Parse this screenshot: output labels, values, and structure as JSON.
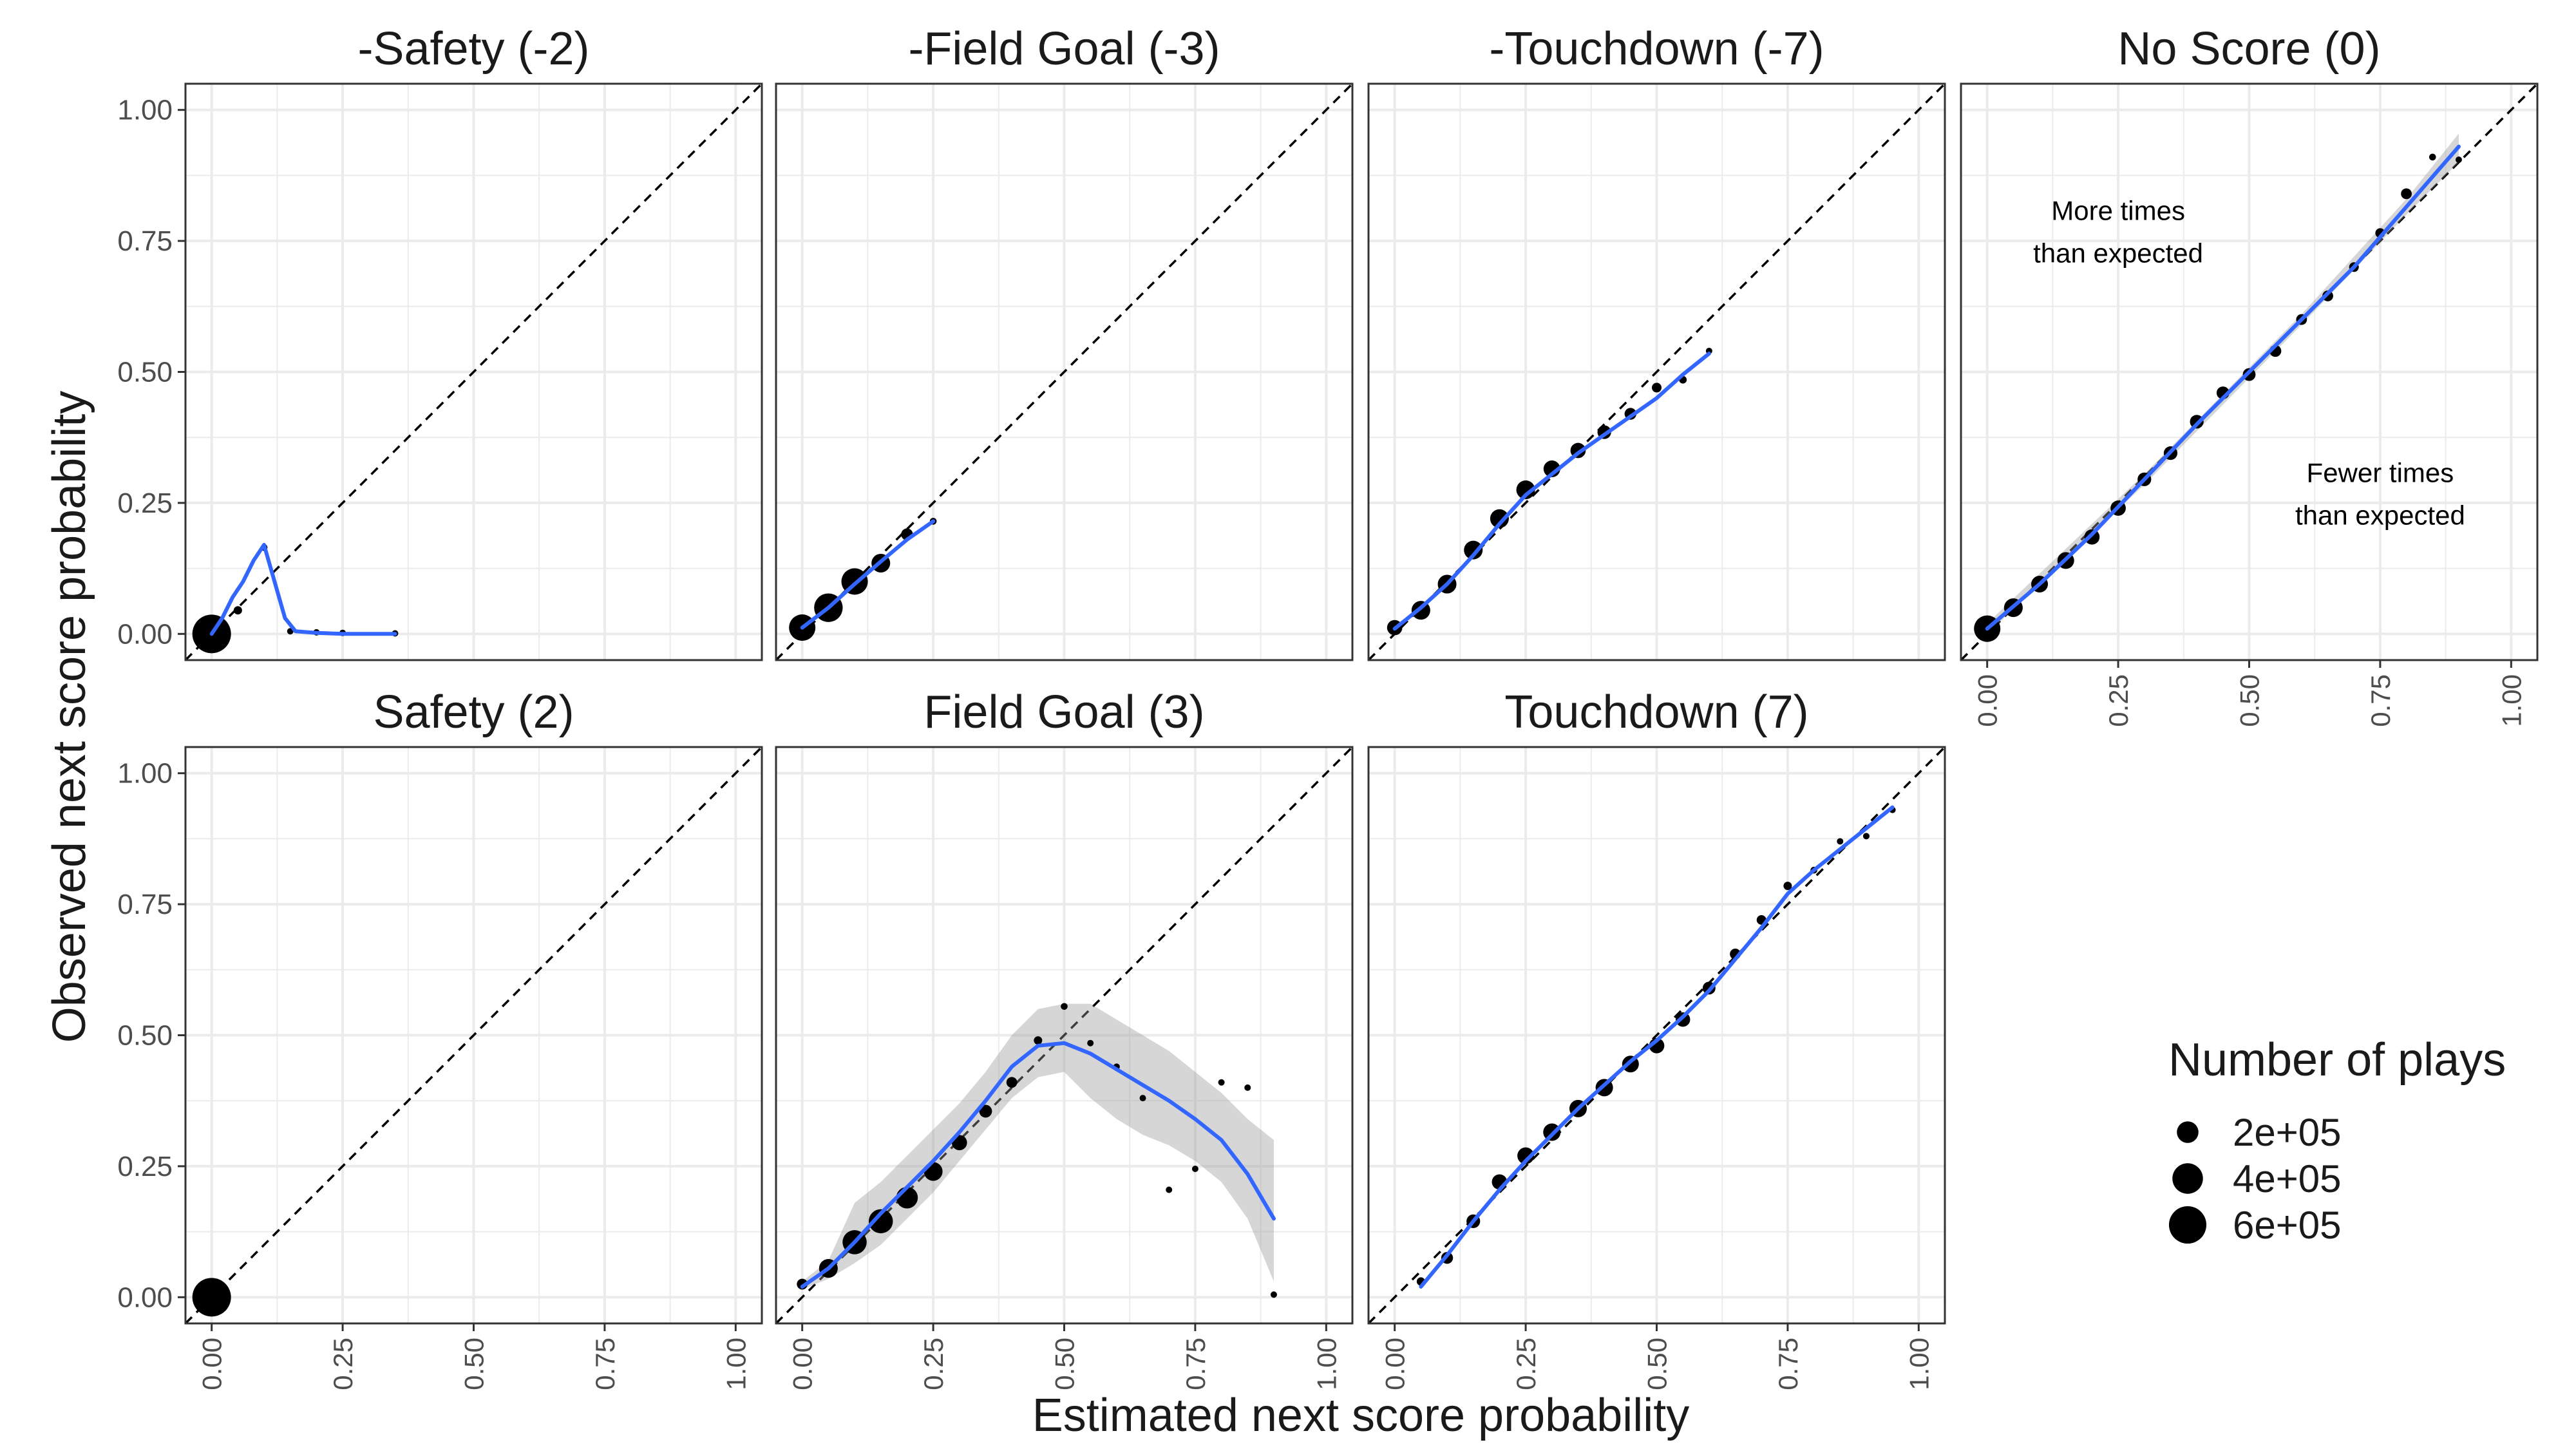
{
  "colors": {
    "smooth": "#3366FF",
    "ribbon": "#999999",
    "points": "#000000",
    "identity": "#000000",
    "grid": "#EBEBEB",
    "border": "#333333"
  },
  "figure": {
    "xlabel": "Estimated next score probability",
    "ylabel": "Observed next score probability",
    "ticks": [
      "0.00",
      "0.25",
      "0.50",
      "0.75",
      "1.00"
    ],
    "annotations": {
      "more": [
        "More times",
        "than expected"
      ],
      "fewer": [
        "Fewer times",
        "than expected"
      ]
    },
    "legend": {
      "title": "Number of plays",
      "entries": [
        {
          "label": "2e+05",
          "n": 200000
        },
        {
          "label": "4e+05",
          "n": 400000
        },
        {
          "label": "6e+05",
          "n": 600000
        }
      ]
    }
  },
  "chart_data": [
    {
      "type": "scatter",
      "title": "-Safety (-2)",
      "xlim": [
        0,
        1
      ],
      "ylim": [
        0,
        1
      ],
      "identity_line": true,
      "points": [
        {
          "x": 0.0,
          "y": 0.0,
          "n": 640000
        },
        {
          "x": 0.05,
          "y": 0.045,
          "n": 30000
        },
        {
          "x": 0.1,
          "y": 0.165,
          "n": 20000
        },
        {
          "x": 0.15,
          "y": 0.005,
          "n": 15000
        },
        {
          "x": 0.2,
          "y": 0.003,
          "n": 12000
        },
        {
          "x": 0.25,
          "y": 0.002,
          "n": 10000
        },
        {
          "x": 0.35,
          "y": 0.001,
          "n": 10000
        }
      ],
      "smooth": [
        [
          0.0,
          0.0
        ],
        [
          0.02,
          0.03
        ],
        [
          0.04,
          0.07
        ],
        [
          0.06,
          0.1
        ],
        [
          0.08,
          0.14
        ],
        [
          0.1,
          0.17
        ],
        [
          0.12,
          0.1
        ],
        [
          0.14,
          0.03
        ],
        [
          0.16,
          0.005
        ],
        [
          0.2,
          0.002
        ],
        [
          0.25,
          0.0
        ],
        [
          0.3,
          0.0
        ],
        [
          0.35,
          0.0
        ]
      ]
    },
    {
      "type": "scatter",
      "title": "-Field Goal (-3)",
      "xlim": [
        0,
        1
      ],
      "ylim": [
        0,
        1
      ],
      "identity_line": true,
      "points": [
        {
          "x": 0.0,
          "y": 0.012,
          "n": 300000
        },
        {
          "x": 0.05,
          "y": 0.05,
          "n": 350000
        },
        {
          "x": 0.1,
          "y": 0.1,
          "n": 300000
        },
        {
          "x": 0.15,
          "y": 0.135,
          "n": 150000
        },
        {
          "x": 0.2,
          "y": 0.19,
          "n": 60000
        },
        {
          "x": 0.25,
          "y": 0.215,
          "n": 20000
        }
      ],
      "smooth": [
        [
          0.0,
          0.012
        ],
        [
          0.05,
          0.05
        ],
        [
          0.1,
          0.095
        ],
        [
          0.15,
          0.138
        ],
        [
          0.2,
          0.18
        ],
        [
          0.25,
          0.215
        ]
      ]
    },
    {
      "type": "scatter",
      "title": "-Touchdown (-7)",
      "xlim": [
        0,
        1
      ],
      "ylim": [
        0,
        1
      ],
      "identity_line": true,
      "points": [
        {
          "x": 0.0,
          "y": 0.012,
          "n": 100000
        },
        {
          "x": 0.05,
          "y": 0.045,
          "n": 150000
        },
        {
          "x": 0.1,
          "y": 0.095,
          "n": 150000
        },
        {
          "x": 0.15,
          "y": 0.16,
          "n": 150000
        },
        {
          "x": 0.2,
          "y": 0.22,
          "n": 150000
        },
        {
          "x": 0.25,
          "y": 0.275,
          "n": 150000
        },
        {
          "x": 0.3,
          "y": 0.315,
          "n": 120000
        },
        {
          "x": 0.35,
          "y": 0.35,
          "n": 100000
        },
        {
          "x": 0.4,
          "y": 0.385,
          "n": 80000
        },
        {
          "x": 0.45,
          "y": 0.42,
          "n": 60000
        },
        {
          "x": 0.5,
          "y": 0.47,
          "n": 40000
        },
        {
          "x": 0.55,
          "y": 0.485,
          "n": 25000
        },
        {
          "x": 0.6,
          "y": 0.54,
          "n": 15000
        }
      ],
      "smooth": [
        [
          0.0,
          0.01
        ],
        [
          0.05,
          0.05
        ],
        [
          0.1,
          0.095
        ],
        [
          0.15,
          0.15
        ],
        [
          0.2,
          0.21
        ],
        [
          0.25,
          0.265
        ],
        [
          0.3,
          0.305
        ],
        [
          0.35,
          0.345
        ],
        [
          0.4,
          0.38
        ],
        [
          0.45,
          0.415
        ],
        [
          0.5,
          0.45
        ],
        [
          0.55,
          0.495
        ],
        [
          0.6,
          0.535
        ]
      ]
    },
    {
      "type": "scatter",
      "title": "No Score (0)",
      "xlim": [
        0,
        1
      ],
      "ylim": [
        0,
        1
      ],
      "identity_line": true,
      "points": [
        {
          "x": 0.0,
          "y": 0.01,
          "n": 300000
        },
        {
          "x": 0.05,
          "y": 0.05,
          "n": 150000
        },
        {
          "x": 0.1,
          "y": 0.095,
          "n": 120000
        },
        {
          "x": 0.15,
          "y": 0.14,
          "n": 120000
        },
        {
          "x": 0.2,
          "y": 0.185,
          "n": 100000
        },
        {
          "x": 0.25,
          "y": 0.24,
          "n": 100000
        },
        {
          "x": 0.3,
          "y": 0.295,
          "n": 80000
        },
        {
          "x": 0.35,
          "y": 0.345,
          "n": 80000
        },
        {
          "x": 0.4,
          "y": 0.405,
          "n": 80000
        },
        {
          "x": 0.45,
          "y": 0.46,
          "n": 70000
        },
        {
          "x": 0.5,
          "y": 0.495,
          "n": 70000
        },
        {
          "x": 0.55,
          "y": 0.54,
          "n": 60000
        },
        {
          "x": 0.6,
          "y": 0.6,
          "n": 50000
        },
        {
          "x": 0.65,
          "y": 0.645,
          "n": 50000
        },
        {
          "x": 0.7,
          "y": 0.7,
          "n": 40000
        },
        {
          "x": 0.75,
          "y": 0.765,
          "n": 40000
        },
        {
          "x": 0.8,
          "y": 0.84,
          "n": 50000
        },
        {
          "x": 0.85,
          "y": 0.91,
          "n": 20000
        },
        {
          "x": 0.9,
          "y": 0.905,
          "n": 10000
        }
      ],
      "ribbon": [
        [
          0.0,
          0.0,
          0.02
        ],
        [
          0.3,
          0.285,
          0.305
        ],
        [
          0.6,
          0.59,
          0.61
        ],
        [
          0.8,
          0.8,
          0.83
        ],
        [
          0.9,
          0.9,
          0.955
        ]
      ],
      "smooth": [
        [
          0.0,
          0.01
        ],
        [
          0.1,
          0.095
        ],
        [
          0.2,
          0.19
        ],
        [
          0.3,
          0.295
        ],
        [
          0.4,
          0.4
        ],
        [
          0.5,
          0.5
        ],
        [
          0.6,
          0.6
        ],
        [
          0.7,
          0.7
        ],
        [
          0.8,
          0.815
        ],
        [
          0.9,
          0.93
        ]
      ]
    },
    {
      "type": "scatter",
      "title": "Safety (2)",
      "xlim": [
        0,
        1
      ],
      "ylim": [
        0,
        1
      ],
      "identity_line": true,
      "points": [
        {
          "x": 0.0,
          "y": 0.0,
          "n": 640000
        }
      ],
      "smooth": []
    },
    {
      "type": "scatter",
      "title": "Field Goal (3)",
      "xlim": [
        0,
        1
      ],
      "ylim": [
        0,
        1
      ],
      "identity_line": true,
      "points": [
        {
          "x": 0.0,
          "y": 0.025,
          "n": 50000
        },
        {
          "x": 0.05,
          "y": 0.055,
          "n": 150000
        },
        {
          "x": 0.1,
          "y": 0.105,
          "n": 250000
        },
        {
          "x": 0.15,
          "y": 0.145,
          "n": 250000
        },
        {
          "x": 0.2,
          "y": 0.19,
          "n": 200000
        },
        {
          "x": 0.25,
          "y": 0.24,
          "n": 150000
        },
        {
          "x": 0.3,
          "y": 0.295,
          "n": 100000
        },
        {
          "x": 0.35,
          "y": 0.355,
          "n": 70000
        },
        {
          "x": 0.4,
          "y": 0.41,
          "n": 50000
        },
        {
          "x": 0.45,
          "y": 0.49,
          "n": 30000
        },
        {
          "x": 0.5,
          "y": 0.555,
          "n": 20000
        },
        {
          "x": 0.55,
          "y": 0.485,
          "n": 15000
        },
        {
          "x": 0.6,
          "y": 0.44,
          "n": 10000
        },
        {
          "x": 0.65,
          "y": 0.38,
          "n": 10000
        },
        {
          "x": 0.7,
          "y": 0.205,
          "n": 8000
        },
        {
          "x": 0.75,
          "y": 0.245,
          "n": 6000
        },
        {
          "x": 0.8,
          "y": 0.41,
          "n": 5000
        },
        {
          "x": 0.85,
          "y": 0.4,
          "n": 5000
        },
        {
          "x": 0.9,
          "y": 0.005,
          "n": 3000
        }
      ],
      "ribbon": [
        [
          0.0,
          0.015,
          0.03
        ],
        [
          0.05,
          0.035,
          0.07
        ],
        [
          0.1,
          0.065,
          0.18
        ],
        [
          0.15,
          0.1,
          0.22
        ],
        [
          0.2,
          0.15,
          0.27
        ],
        [
          0.25,
          0.2,
          0.32
        ],
        [
          0.3,
          0.26,
          0.37
        ],
        [
          0.35,
          0.32,
          0.43
        ],
        [
          0.4,
          0.38,
          0.5
        ],
        [
          0.45,
          0.42,
          0.55
        ],
        [
          0.5,
          0.43,
          0.56
        ],
        [
          0.55,
          0.38,
          0.56
        ],
        [
          0.6,
          0.34,
          0.53
        ],
        [
          0.65,
          0.31,
          0.5
        ],
        [
          0.7,
          0.29,
          0.47
        ],
        [
          0.75,
          0.26,
          0.43
        ],
        [
          0.8,
          0.22,
          0.39
        ],
        [
          0.85,
          0.15,
          0.34
        ],
        [
          0.9,
          0.03,
          0.3
        ]
      ],
      "smooth": [
        [
          0.0,
          0.02
        ],
        [
          0.05,
          0.055
        ],
        [
          0.1,
          0.105
        ],
        [
          0.15,
          0.16
        ],
        [
          0.2,
          0.21
        ],
        [
          0.25,
          0.26
        ],
        [
          0.3,
          0.315
        ],
        [
          0.35,
          0.375
        ],
        [
          0.4,
          0.44
        ],
        [
          0.45,
          0.48
        ],
        [
          0.5,
          0.485
        ],
        [
          0.55,
          0.465
        ],
        [
          0.6,
          0.435
        ],
        [
          0.65,
          0.405
        ],
        [
          0.7,
          0.375
        ],
        [
          0.75,
          0.34
        ],
        [
          0.8,
          0.3
        ],
        [
          0.85,
          0.235
        ],
        [
          0.9,
          0.15
        ]
      ]
    },
    {
      "type": "scatter",
      "title": "Touchdown (7)",
      "xlim": [
        0,
        1
      ],
      "ylim": [
        0,
        1
      ],
      "identity_line": true,
      "points": [
        {
          "x": 0.05,
          "y": 0.03,
          "n": 30000
        },
        {
          "x": 0.1,
          "y": 0.075,
          "n": 60000
        },
        {
          "x": 0.15,
          "y": 0.145,
          "n": 80000
        },
        {
          "x": 0.2,
          "y": 0.22,
          "n": 100000
        },
        {
          "x": 0.25,
          "y": 0.27,
          "n": 120000
        },
        {
          "x": 0.3,
          "y": 0.315,
          "n": 130000
        },
        {
          "x": 0.35,
          "y": 0.36,
          "n": 130000
        },
        {
          "x": 0.4,
          "y": 0.4,
          "n": 130000
        },
        {
          "x": 0.45,
          "y": 0.445,
          "n": 120000
        },
        {
          "x": 0.5,
          "y": 0.48,
          "n": 100000
        },
        {
          "x": 0.55,
          "y": 0.53,
          "n": 90000
        },
        {
          "x": 0.6,
          "y": 0.59,
          "n": 70000
        },
        {
          "x": 0.65,
          "y": 0.655,
          "n": 50000
        },
        {
          "x": 0.7,
          "y": 0.72,
          "n": 40000
        },
        {
          "x": 0.75,
          "y": 0.785,
          "n": 30000
        },
        {
          "x": 0.8,
          "y": 0.815,
          "n": 20000
        },
        {
          "x": 0.85,
          "y": 0.87,
          "n": 15000
        },
        {
          "x": 0.9,
          "y": 0.88,
          "n": 10000
        },
        {
          "x": 0.95,
          "y": 0.93,
          "n": 5000
        }
      ],
      "smooth": [
        [
          0.05,
          0.02
        ],
        [
          0.1,
          0.08
        ],
        [
          0.15,
          0.145
        ],
        [
          0.2,
          0.205
        ],
        [
          0.25,
          0.26
        ],
        [
          0.3,
          0.31
        ],
        [
          0.35,
          0.36
        ],
        [
          0.4,
          0.405
        ],
        [
          0.45,
          0.45
        ],
        [
          0.5,
          0.49
        ],
        [
          0.55,
          0.535
        ],
        [
          0.6,
          0.585
        ],
        [
          0.65,
          0.645
        ],
        [
          0.7,
          0.705
        ],
        [
          0.75,
          0.77
        ],
        [
          0.8,
          0.815
        ],
        [
          0.85,
          0.855
        ],
        [
          0.9,
          0.895
        ],
        [
          0.95,
          0.935
        ]
      ]
    }
  ]
}
